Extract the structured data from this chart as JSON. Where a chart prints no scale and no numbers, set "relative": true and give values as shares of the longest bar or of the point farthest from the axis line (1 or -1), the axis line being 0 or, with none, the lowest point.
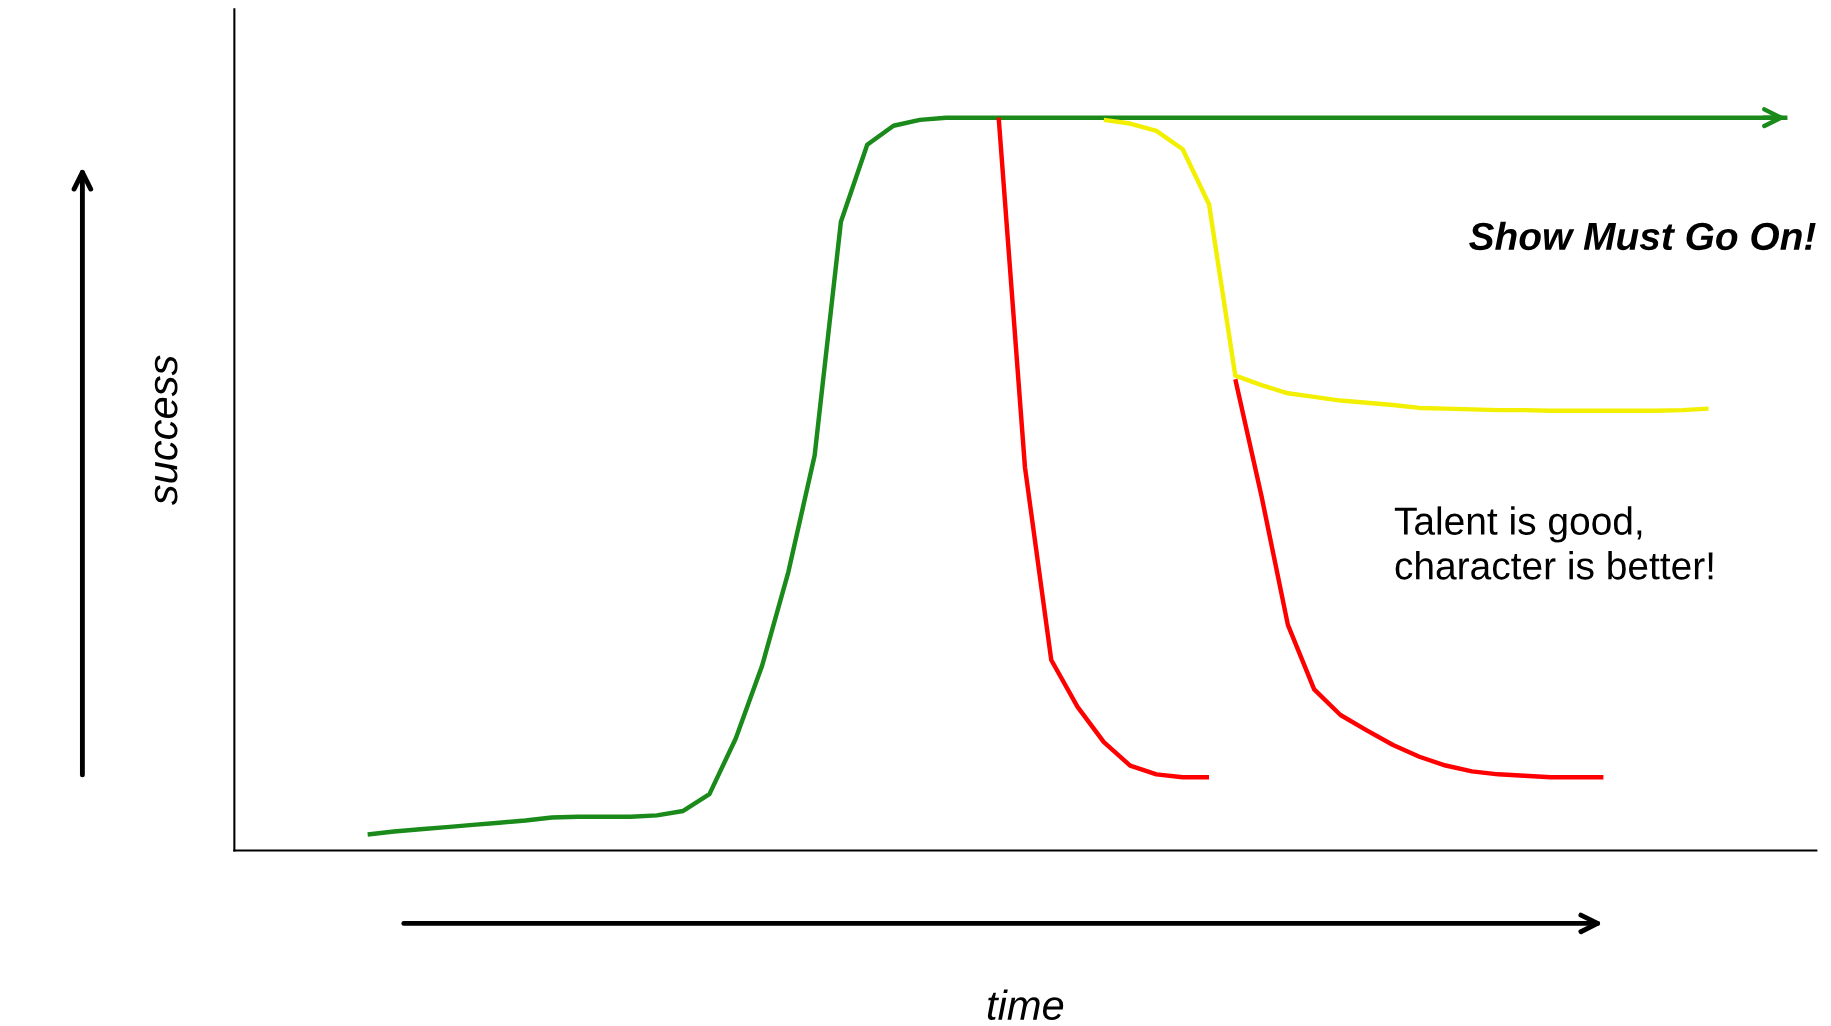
{
  "chart_data": {
    "type": "line",
    "relative": true,
    "xlabel": "time",
    "ylabel": "success",
    "categories": [
      null,
      null,
      null,
      null,
      null,
      null,
      null,
      null,
      null,
      null,
      null,
      null,
      null,
      null,
      null,
      null,
      null,
      null,
      null,
      null,
      null,
      null,
      null,
      null,
      null,
      null,
      null,
      null,
      null,
      null,
      null,
      null,
      null,
      null,
      null,
      null,
      null,
      null,
      null,
      null,
      null,
      null,
      null,
      null,
      null,
      null,
      null,
      null,
      null,
      null,
      null,
      null,
      null,
      null,
      null
    ],
    "series": [
      {
        "color": "#1a8a1a",
        "values": [
          0.022,
          0.026,
          0.029,
          0.032,
          0.035,
          0.038,
          0.041,
          0.045,
          0.046,
          0.046,
          0.046,
          0.048,
          0.054,
          0.077,
          0.153,
          0.252,
          0.38,
          0.539,
          0.858,
          0.963,
          0.989,
          0.997,
          1.0,
          1.0,
          1.0,
          1.0,
          1.0,
          1.0,
          1.0,
          1.0,
          1.0,
          1.0,
          1.0,
          1.0,
          1.0,
          1.0,
          1.0,
          1.0,
          1.0,
          1.0,
          1.0,
          1.0,
          1.0,
          1.0,
          1.0,
          1.0,
          1.0,
          1.0,
          1.0,
          1.0,
          1.0,
          1.0,
          1.0,
          1.0,
          1.0
        ]
      },
      {
        "color": "#f2f000",
        "values": [
          null,
          null,
          null,
          null,
          null,
          null,
          null,
          null,
          null,
          null,
          null,
          null,
          null,
          null,
          null,
          null,
          null,
          null,
          null,
          null,
          null,
          null,
          null,
          null,
          null,
          null,
          null,
          null,
          0.997,
          0.992,
          0.982,
          0.957,
          0.882,
          0.648,
          0.635,
          0.624,
          0.619,
          0.614,
          0.611,
          0.608,
          0.604,
          0.603,
          0.602,
          0.601,
          0.601,
          0.6,
          0.6,
          0.6,
          0.6,
          0.6,
          0.601,
          0.603,
          null,
          null,
          null
        ]
      },
      {
        "color": "#ff0000",
        "values": [
          null,
          null,
          null,
          null,
          null,
          null,
          null,
          null,
          null,
          null,
          null,
          null,
          null,
          null,
          null,
          null,
          null,
          null,
          null,
          null,
          null,
          null,
          null,
          null,
          1.0,
          0.523,
          0.26,
          0.196,
          0.148,
          0.116,
          0.104,
          0.1,
          0.1,
          null,
          null,
          null,
          null,
          null,
          null,
          null,
          null,
          null,
          null,
          null,
          null,
          null,
          null,
          null,
          null,
          null,
          null,
          null,
          null,
          null,
          null
        ]
      },
      {
        "color": "#ff0000",
        "values": [
          null,
          null,
          null,
          null,
          null,
          null,
          null,
          null,
          null,
          null,
          null,
          null,
          null,
          null,
          null,
          null,
          null,
          null,
          null,
          null,
          null,
          null,
          null,
          null,
          null,
          null,
          null,
          null,
          null,
          null,
          null,
          null,
          null,
          0.643,
          0.483,
          0.308,
          0.22,
          0.185,
          0.164,
          0.144,
          0.128,
          0.116,
          0.108,
          0.104,
          0.102,
          0.1,
          0.1,
          0.1,
          null,
          null,
          null,
          null,
          null,
          null,
          null
        ]
      }
    ],
    "annotations": [
      "Show Must Go On!",
      "Talent is good,\ncharacter is better!"
    ]
  }
}
